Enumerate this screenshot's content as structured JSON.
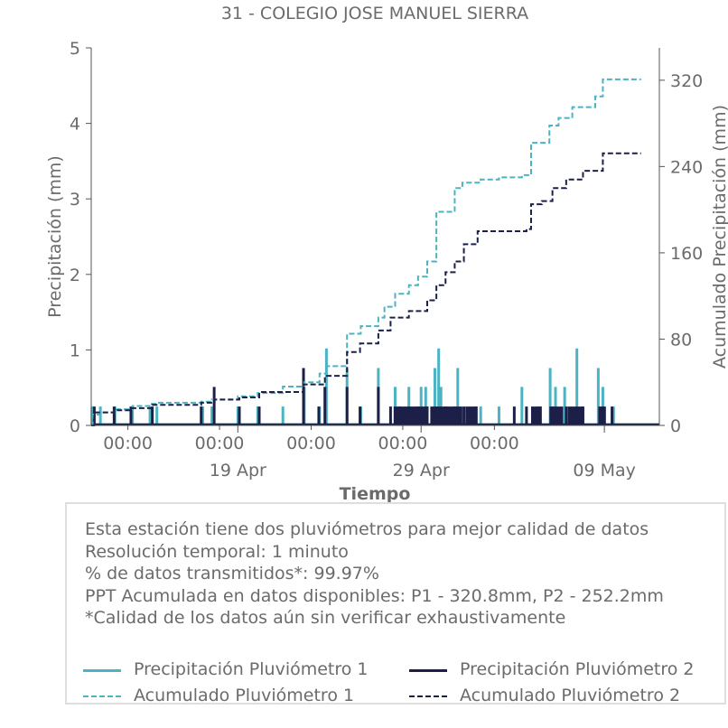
{
  "chart_data": {
    "type": "line",
    "title": "31 - COLEGIO JOSE MANUEL SIERRA",
    "xlabel": "Tiempo",
    "ylabel_left": "Precipitación (mm)",
    "ylabel_right": "Acumulado Precipitación (mm)",
    "ylim_left": [
      0,
      5
    ],
    "ylim_right": [
      0,
      350
    ],
    "yticks_left": [
      "0",
      "1",
      "2",
      "3",
      "4",
      "5"
    ],
    "yticks_right": [
      "0",
      "80",
      "160",
      "240",
      "320"
    ],
    "xlim": [
      "2024-04-11T00:00",
      "2024-05-12T00:00"
    ],
    "xticks_minor": [
      "00:00",
      "00:00",
      "00:00",
      "00:00",
      "00:00"
    ],
    "xticks_major": [
      "19 Apr",
      "29 Apr",
      "09 May"
    ],
    "grid": false,
    "series": [
      {
        "name": "Precipitación Pluviómetro 1",
        "axis": "left",
        "color": "#4bb3c1",
        "style": "solid",
        "bars": [
          {
            "t": "2024-04-11T01:00",
            "v": 0.25
          },
          {
            "t": "2024-04-11T12:00",
            "v": 0.25
          },
          {
            "t": "2024-04-12T07:00",
            "v": 0.25
          },
          {
            "t": "2024-04-13T06:00",
            "v": 0.25
          },
          {
            "t": "2024-04-14T05:00",
            "v": 0.25
          },
          {
            "t": "2024-04-14T14:00",
            "v": 0.25
          },
          {
            "t": "2024-04-17T02:00",
            "v": 0.25
          },
          {
            "t": "2024-04-17T14:00",
            "v": 0.25
          },
          {
            "t": "2024-04-19T00:00",
            "v": 0.25
          },
          {
            "t": "2024-04-20T02:00",
            "v": 0.25
          },
          {
            "t": "2024-04-21T11:00",
            "v": 0.25
          },
          {
            "t": "2024-04-22T15:00",
            "v": 0.51
          },
          {
            "t": "2024-04-23T11:00",
            "v": 0.25
          },
          {
            "t": "2024-04-23T20:00",
            "v": 1.02
          },
          {
            "t": "2024-04-24T23:00",
            "v": 0.76
          },
          {
            "t": "2024-04-25T17:00",
            "v": 0.25
          },
          {
            "t": "2024-04-26T16:00",
            "v": 0.76
          },
          {
            "t": "2024-04-27T14:00",
            "v": 0.51
          },
          {
            "t": "2024-04-28T08:00",
            "v": 0.51
          },
          {
            "t": "2024-04-29T00:00",
            "v": 0.51
          },
          {
            "t": "2024-04-29T06:00",
            "v": 0.51
          },
          {
            "t": "2024-04-29T18:00",
            "v": 0.76
          },
          {
            "t": "2024-04-29T23:00",
            "v": 1.02
          },
          {
            "t": "2024-04-30T02:00",
            "v": 0.51
          },
          {
            "t": "2024-05-01T00:00",
            "v": 0.76
          },
          {
            "t": "2024-05-02T06:00",
            "v": 0.25
          },
          {
            "t": "2024-05-03T06:00",
            "v": 0.25
          },
          {
            "t": "2024-05-04T12:00",
            "v": 0.51
          },
          {
            "t": "2024-05-05T08:00",
            "v": 0.25
          },
          {
            "t": "2024-05-06T01:00",
            "v": 0.76
          },
          {
            "t": "2024-05-06T08:00",
            "v": 0.51
          },
          {
            "t": "2024-05-06T20:00",
            "v": 0.51
          },
          {
            "t": "2024-05-07T12:00",
            "v": 1.02
          },
          {
            "t": "2024-05-08T16:00",
            "v": 0.76
          },
          {
            "t": "2024-05-08T22:00",
            "v": 0.51
          },
          {
            "t": "2024-05-09T12:00",
            "v": 0.25
          }
        ]
      },
      {
        "name": "Precipitación Pluviómetro 2",
        "axis": "left",
        "color": "#1c2048",
        "style": "solid",
        "bars": [
          {
            "t": "2024-04-11T04:00",
            "v": 0.25
          },
          {
            "t": "2024-04-12T06:00",
            "v": 0.25
          },
          {
            "t": "2024-04-13T04:00",
            "v": 0.25
          },
          {
            "t": "2024-04-14T08:00",
            "v": 0.25
          },
          {
            "t": "2024-04-17T00:00",
            "v": 0.25
          },
          {
            "t": "2024-04-17T17:00",
            "v": 0.51
          },
          {
            "t": "2024-04-19T02:00",
            "v": 0.25
          },
          {
            "t": "2024-04-20T04:00",
            "v": 0.25
          },
          {
            "t": "2024-04-22T14:00",
            "v": 0.76
          },
          {
            "t": "2024-04-23T10:00",
            "v": 0.25
          },
          {
            "t": "2024-04-23T18:00",
            "v": 0.51
          },
          {
            "t": "2024-04-24T23:00",
            "v": 0.51
          },
          {
            "t": "2024-04-25T16:00",
            "v": 0.25
          },
          {
            "t": "2024-04-26T16:00",
            "v": 0.51
          },
          {
            "t": "2024-04-27T08:00",
            "v": 0.25
          },
          {
            "t": "2024-04-27T20:00",
            "v": 0.25
          },
          {
            "t": "2024-04-28T08:00",
            "v": 0.25
          },
          {
            "t": "2024-04-28T20:00",
            "v": 0.25
          },
          {
            "t": "2024-04-29T08:00",
            "v": 0.25
          },
          {
            "t": "2024-04-29T20:00",
            "v": 0.25
          },
          {
            "t": "2024-04-30T08:00",
            "v": 0.25
          },
          {
            "t": "2024-04-30T20:00",
            "v": 0.25
          },
          {
            "t": "2024-05-01T08:00",
            "v": 0.25
          },
          {
            "t": "2024-05-02T00:00",
            "v": 0.25
          },
          {
            "t": "2024-05-04T02:00",
            "v": 0.25
          },
          {
            "t": "2024-05-04T18:00",
            "v": 0.25
          },
          {
            "t": "2024-05-05T12:00",
            "v": 0.25
          },
          {
            "t": "2024-05-06T04:00",
            "v": 0.25
          },
          {
            "t": "2024-05-06T22:00",
            "v": 0.25
          },
          {
            "t": "2024-05-07T20:00",
            "v": 0.25
          },
          {
            "t": "2024-05-08T22:00",
            "v": 0.25
          },
          {
            "t": "2024-05-09T10:00",
            "v": 0.25
          }
        ],
        "spans": [
          {
            "start": "2024-04-27T12:00",
            "end": "2024-04-29T09:00",
            "v": 0.25
          },
          {
            "start": "2024-04-29T12:00",
            "end": "2024-05-01T06:00",
            "v": 0.25
          },
          {
            "start": "2024-05-01T10:00",
            "end": "2024-05-02T02:00",
            "v": 0.25
          },
          {
            "start": "2024-05-05T00:00",
            "end": "2024-05-05T14:00",
            "v": 0.25
          },
          {
            "start": "2024-05-06T00:00",
            "end": "2024-05-06T18:00",
            "v": 0.25
          },
          {
            "start": "2024-05-07T00:00",
            "end": "2024-05-07T20:00",
            "v": 0.25
          },
          {
            "start": "2024-05-08T16:00",
            "end": "2024-05-09T02:00",
            "v": 0.25
          }
        ]
      },
      {
        "name": "Acumulado Pluviómetro 1",
        "axis": "right",
        "color": "#4bb3c1",
        "style": "dashed",
        "points": [
          {
            "t": "2024-04-11T00:00",
            "v": 0
          },
          {
            "t": "2024-04-11T02:00",
            "v": 10
          },
          {
            "t": "2024-04-11T12:00",
            "v": 12
          },
          {
            "t": "2024-04-12T06:00",
            "v": 15
          },
          {
            "t": "2024-04-13T06:00",
            "v": 18
          },
          {
            "t": "2024-04-14T06:00",
            "v": 20
          },
          {
            "t": "2024-04-14T14:00",
            "v": 21
          },
          {
            "t": "2024-04-17T00:00",
            "v": 22
          },
          {
            "t": "2024-04-17T14:00",
            "v": 24
          },
          {
            "t": "2024-04-19T00:00",
            "v": 27
          },
          {
            "t": "2024-04-20T02:00",
            "v": 30
          },
          {
            "t": "2024-04-21T11:00",
            "v": 36
          },
          {
            "t": "2024-04-22T15:00",
            "v": 40
          },
          {
            "t": "2024-04-23T11:00",
            "v": 48
          },
          {
            "t": "2024-04-23T20:00",
            "v": 55
          },
          {
            "t": "2024-04-24T23:00",
            "v": 85
          },
          {
            "t": "2024-04-25T17:00",
            "v": 92
          },
          {
            "t": "2024-04-26T16:00",
            "v": 100
          },
          {
            "t": "2024-04-27T00:00",
            "v": 110
          },
          {
            "t": "2024-04-27T14:00",
            "v": 122
          },
          {
            "t": "2024-04-28T08:00",
            "v": 130
          },
          {
            "t": "2024-04-28T20:00",
            "v": 138
          },
          {
            "t": "2024-04-29T08:00",
            "v": 152
          },
          {
            "t": "2024-04-29T20:00",
            "v": 198
          },
          {
            "t": "2024-04-30T20:00",
            "v": 220
          },
          {
            "t": "2024-05-01T06:00",
            "v": 225
          },
          {
            "t": "2024-05-02T06:00",
            "v": 228
          },
          {
            "t": "2024-05-03T06:00",
            "v": 230
          },
          {
            "t": "2024-05-04T12:00",
            "v": 232
          },
          {
            "t": "2024-05-05T00:00",
            "v": 262
          },
          {
            "t": "2024-05-06T00:00",
            "v": 278
          },
          {
            "t": "2024-05-06T12:00",
            "v": 285
          },
          {
            "t": "2024-05-07T06:00",
            "v": 295
          },
          {
            "t": "2024-05-08T12:00",
            "v": 305
          },
          {
            "t": "2024-05-08T22:00",
            "v": 320.8
          },
          {
            "t": "2024-05-11T00:00",
            "v": 320.8
          }
        ]
      },
      {
        "name": "Acumulado Pluviómetro 2",
        "axis": "right",
        "color": "#1c2048",
        "style": "dashed",
        "points": [
          {
            "t": "2024-04-11T00:00",
            "v": 0
          },
          {
            "t": "2024-04-11T04:00",
            "v": 12
          },
          {
            "t": "2024-04-12T06:00",
            "v": 14
          },
          {
            "t": "2024-04-13T04:00",
            "v": 16
          },
          {
            "t": "2024-04-14T08:00",
            "v": 19
          },
          {
            "t": "2024-04-17T00:00",
            "v": 21
          },
          {
            "t": "2024-04-17T17:00",
            "v": 24
          },
          {
            "t": "2024-04-19T02:00",
            "v": 26
          },
          {
            "t": "2024-04-20T04:00",
            "v": 31
          },
          {
            "t": "2024-04-22T14:00",
            "v": 38
          },
          {
            "t": "2024-04-23T18:00",
            "v": 46
          },
          {
            "t": "2024-04-24T23:00",
            "v": 68
          },
          {
            "t": "2024-04-25T16:00",
            "v": 76
          },
          {
            "t": "2024-04-26T16:00",
            "v": 88
          },
          {
            "t": "2024-04-27T08:00",
            "v": 100
          },
          {
            "t": "2024-04-28T08:00",
            "v": 106
          },
          {
            "t": "2024-04-29T08:00",
            "v": 116
          },
          {
            "t": "2024-04-29T20:00",
            "v": 130
          },
          {
            "t": "2024-04-30T08:00",
            "v": 142
          },
          {
            "t": "2024-04-30T20:00",
            "v": 152
          },
          {
            "t": "2024-05-01T08:00",
            "v": 168
          },
          {
            "t": "2024-05-02T02:00",
            "v": 180
          },
          {
            "t": "2024-05-04T18:00",
            "v": 182
          },
          {
            "t": "2024-05-05T00:00",
            "v": 205
          },
          {
            "t": "2024-05-05T14:00",
            "v": 208
          },
          {
            "t": "2024-05-06T04:00",
            "v": 220
          },
          {
            "t": "2024-05-06T22:00",
            "v": 228
          },
          {
            "t": "2024-05-07T20:00",
            "v": 236
          },
          {
            "t": "2024-05-08T22:00",
            "v": 252.2
          },
          {
            "t": "2024-05-11T00:00",
            "v": 252.2
          }
        ]
      }
    ]
  },
  "info": {
    "lines": [
      "Esta estación tiene dos pluviómetros para mejor calidad de datos",
      "Resolución temporal: 1 minuto",
      "% de datos transmitidos*: 99.97%",
      "PPT Acumulada en datos disponibles: P1 - 320.8mm, P2 - 252.2mm",
      "*Calidad de los datos aún sin verificar exhaustivamente"
    ]
  },
  "legend": {
    "items": [
      {
        "label": "Precipitación Pluviómetro 1",
        "color": "#4bb3c1",
        "style": "solid"
      },
      {
        "label": "Precipitación Pluviómetro 2",
        "color": "#1c2048",
        "style": "solid"
      },
      {
        "label": "Acumulado Pluviómetro 1",
        "color": "#4bb3c1",
        "style": "dashed"
      },
      {
        "label": "Acumulado Pluviómetro 2",
        "color": "#1c2048",
        "style": "dashed"
      }
    ]
  }
}
